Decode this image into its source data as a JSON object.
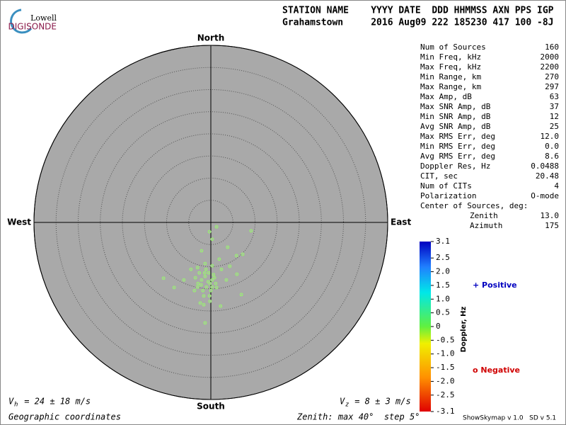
{
  "logo": {
    "top": "Lowell",
    "bottom": "DIGISONDE"
  },
  "header": {
    "labels": "STATION NAME    YYYY DATE  DDD HHMMSS AXN PPS IGP",
    "values": "Grahamstown     2016 Aug09 222 185230 417 100 -8J"
  },
  "stats": {
    "rows": [
      [
        "Num of Sources",
        "160"
      ],
      [
        "Min Freq, kHz",
        "2000"
      ],
      [
        "Max Freq, kHz",
        "2200"
      ],
      [
        "Min Range, km",
        "270"
      ],
      [
        "Max Range, km",
        "297"
      ],
      [
        "Max Amp, dB",
        "63"
      ],
      [
        "Max SNR Amp, dB",
        "37"
      ],
      [
        "Min SNR Amp, dB",
        "12"
      ],
      [
        "Avg SNR Amp, dB",
        "25"
      ],
      [
        "Max RMS Err, deg",
        "12.0"
      ],
      [
        "Min RMS Err, deg",
        "0.0"
      ],
      [
        "Avg RMS Err, deg",
        "8.6"
      ],
      [
        "Doppler Res, Hz",
        "0.0488"
      ],
      [
        "CIT, sec",
        "20.48"
      ],
      [
        "Num of CITs",
        "4"
      ],
      [
        "Polarization",
        "O-mode"
      ]
    ],
    "center_title": "Center of Sources, deg:",
    "center_rows": [
      [
        "Zenith",
        "13.0"
      ],
      [
        "Azimuth",
        "175"
      ]
    ]
  },
  "colorbar": {
    "label": "Doppler, Hz",
    "lim": [
      -3.1,
      3.1
    ],
    "ticks": [
      3.1,
      2.5,
      {
        "value": 2,
        "label": "2.0"
      },
      1.5,
      {
        "value": 1,
        "label": "1.0"
      },
      0.5,
      0,
      -0.5,
      {
        "value": -1,
        "label": "-1.0"
      },
      -1.5,
      {
        "value": -2,
        "label": "-2.0"
      },
      -2.5,
      -3.1
    ]
  },
  "legend": {
    "positive": "+ Positive",
    "negative": "o Negative"
  },
  "footer": {
    "vh_symbol": "V",
    "vh_sub": "h",
    "vh_text": " = 24 ± 18 m/s",
    "vz_symbol": "V",
    "vz_sub": "z",
    "vz_text": " = 8 ± 3 m/s",
    "coords": "Geographic coordinates",
    "zenith": "Zenith: max 40°  step 5°",
    "version": "ShowSkymap v 1.0   SD v 5.1"
  },
  "chart_data": {
    "type": "scatter",
    "color": "#98f070",
    "labels": {
      "north": "North",
      "south": "South",
      "east": "East",
      "west": "West"
    },
    "xlim": [
      -40,
      40
    ],
    "ylim": [
      -40,
      40
    ],
    "rticks": [
      5,
      10,
      15,
      20,
      25,
      30,
      35,
      40
    ],
    "x": [
      1.3,
      -0.3,
      0.3,
      9.1,
      3.8,
      -2.1,
      7.2,
      5.8,
      1.9,
      4.3,
      -4.5,
      -3.0,
      -1.3,
      0.3,
      -10.7,
      -6.1,
      -8.3,
      6.9,
      2.2,
      -1.3,
      -2.4,
      -1.6,
      -0.2,
      5.9,
      2.4,
      3.5,
      -3.7,
      -2.9,
      -2.1,
      -1.3,
      -0.5,
      0.3,
      1.1,
      -1.0,
      -1.8,
      0,
      0.6,
      -2.6,
      -3.5,
      -1.6,
      -0.3,
      1.3,
      -0.6,
      -2.2,
      -1.1,
      -0.2,
      0.3,
      0.8,
      -3.0,
      -1.4
    ],
    "values": [
      -1.0,
      -2.1,
      -3.8,
      -1.9,
      -5.6,
      -6.4,
      -7.2,
      -7.5,
      -8.3,
      -9.9,
      -10.6,
      -10.2,
      -9.3,
      -9.8,
      -12.6,
      -13.0,
      -14.7,
      -16.3,
      -18.9,
      -22.7,
      -18.2,
      -18.6,
      -17.8,
      -11.7,
      -10.6,
      -13.0,
      -15.4,
      -13.8,
      -13.0,
      -12.2,
      -11.4,
      -13.0,
      -13.8,
      -14.6,
      -15.4,
      -15.4,
      -11.8,
      -11.4,
      -12.5,
      -16.6,
      -16.6,
      -14.7,
      -13.4,
      -14.1,
      -10.6,
      -13.8,
      -14.6,
      -12.5,
      -14.6,
      -11.4
    ]
  }
}
